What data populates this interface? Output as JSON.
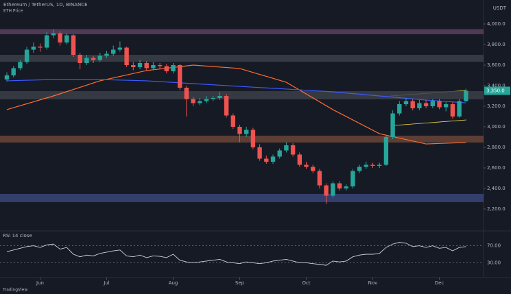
{
  "chart_data": {
    "type": "candlestick",
    "title": "Ethereum / TetherUS, 1D, BINANCE",
    "subtitle": "ETH Price",
    "currency": "USDT",
    "footer": "TradingView",
    "ylim": [
      2000,
      4200
    ],
    "yticks": [
      {
        "value": 2200,
        "label": "2,200.0"
      },
      {
        "value": 2400,
        "label": "2,400.0"
      },
      {
        "value": 2600,
        "label": "2,600.0"
      },
      {
        "value": 2800,
        "label": "2,800.0"
      },
      {
        "value": 3000,
        "label": "3,000.0"
      },
      {
        "value": 3200,
        "label": "3,200.0"
      },
      {
        "value": 3400,
        "label": "3,400.0"
      },
      {
        "value": 3600,
        "label": "3,600.0"
      },
      {
        "value": 3800,
        "label": "3,800.0"
      },
      {
        "value": 4000,
        "label": "4,000.0"
      }
    ],
    "xticks": [
      {
        "value": 5,
        "label": "Jun"
      },
      {
        "value": 15,
        "label": "Jul"
      },
      {
        "value": 25,
        "label": "Aug"
      },
      {
        "value": 35,
        "label": "Sep"
      },
      {
        "value": 45,
        "label": "Oct"
      },
      {
        "value": 55,
        "label": "Nov"
      },
      {
        "value": 65,
        "label": "Dec"
      }
    ],
    "up_color": "#26a69a",
    "down_color": "#ef5350",
    "ohlc": [
      [
        3460,
        3530,
        3440,
        3500
      ],
      [
        3500,
        3590,
        3480,
        3570
      ],
      [
        3570,
        3650,
        3550,
        3630
      ],
      [
        3630,
        3780,
        3610,
        3750
      ],
      [
        3750,
        3820,
        3720,
        3780
      ],
      [
        3780,
        3810,
        3730,
        3770
      ],
      [
        3770,
        3920,
        3750,
        3890
      ],
      [
        3890,
        3950,
        3860,
        3910
      ],
      [
        3910,
        3930,
        3790,
        3820
      ],
      [
        3820,
        3910,
        3800,
        3890
      ],
      [
        3890,
        3900,
        3680,
        3700
      ],
      [
        3700,
        3720,
        3560,
        3620
      ],
      [
        3620,
        3700,
        3600,
        3670
      ],
      [
        3670,
        3690,
        3620,
        3650
      ],
      [
        3650,
        3720,
        3630,
        3690
      ],
      [
        3690,
        3740,
        3670,
        3710
      ],
      [
        3710,
        3790,
        3690,
        3750
      ],
      [
        3750,
        3830,
        3730,
        3770
      ],
      [
        3770,
        3780,
        3580,
        3600
      ],
      [
        3600,
        3630,
        3550,
        3580
      ],
      [
        3580,
        3650,
        3560,
        3620
      ],
      [
        3620,
        3640,
        3550,
        3570
      ],
      [
        3570,
        3630,
        3550,
        3600
      ],
      [
        3600,
        3620,
        3560,
        3590
      ],
      [
        3590,
        3610,
        3520,
        3540
      ],
      [
        3540,
        3620,
        3520,
        3600
      ],
      [
        3600,
        3610,
        3360,
        3380
      ],
      [
        3380,
        3400,
        3100,
        3270
      ],
      [
        3270,
        3290,
        3200,
        3230
      ],
      [
        3230,
        3280,
        3210,
        3250
      ],
      [
        3250,
        3300,
        3230,
        3270
      ],
      [
        3270,
        3300,
        3250,
        3280
      ],
      [
        3280,
        3340,
        3260,
        3300
      ],
      [
        3300,
        3320,
        3090,
        3110
      ],
      [
        3110,
        3130,
        2980,
        3000
      ],
      [
        3000,
        3020,
        2850,
        2930
      ],
      [
        2930,
        3000,
        2900,
        2970
      ],
      [
        2970,
        2990,
        2780,
        2800
      ],
      [
        2800,
        2830,
        2670,
        2690
      ],
      [
        2690,
        2720,
        2640,
        2660
      ],
      [
        2660,
        2730,
        2640,
        2710
      ],
      [
        2710,
        2790,
        2690,
        2770
      ],
      [
        2770,
        2850,
        2750,
        2820
      ],
      [
        2820,
        2840,
        2710,
        2730
      ],
      [
        2730,
        2750,
        2610,
        2630
      ],
      [
        2630,
        2660,
        2590,
        2610
      ],
      [
        2610,
        2630,
        2550,
        2570
      ],
      [
        2570,
        2590,
        2400,
        2430
      ],
      [
        2430,
        2450,
        2250,
        2330
      ],
      [
        2330,
        2470,
        2310,
        2450
      ],
      [
        2450,
        2470,
        2380,
        2400
      ],
      [
        2400,
        2440,
        2380,
        2420
      ],
      [
        2420,
        2590,
        2400,
        2570
      ],
      [
        2570,
        2630,
        2550,
        2610
      ],
      [
        2610,
        2660,
        2590,
        2630
      ],
      [
        2630,
        2650,
        2600,
        2620
      ],
      [
        2620,
        2650,
        2600,
        2630
      ],
      [
        2630,
        2920,
        2620,
        2900
      ],
      [
        2900,
        3160,
        2880,
        3130
      ],
      [
        3130,
        3250,
        3110,
        3220
      ],
      [
        3220,
        3280,
        3200,
        3250
      ],
      [
        3250,
        3270,
        3160,
        3180
      ],
      [
        3180,
        3260,
        3160,
        3230
      ],
      [
        3230,
        3260,
        3180,
        3200
      ],
      [
        3200,
        3270,
        3180,
        3250
      ],
      [
        3250,
        3270,
        3170,
        3190
      ],
      [
        3190,
        3240,
        3150,
        3220
      ],
      [
        3220,
        3240,
        3080,
        3100
      ],
      [
        3100,
        3270,
        3090,
        3250
      ],
      [
        3250,
        3370,
        3240,
        3350
      ]
    ],
    "last_label": "3,350.0",
    "zones": [
      {
        "from": 3900,
        "to": 3950,
        "color": "#5a3f5e"
      },
      {
        "from": 3633,
        "to": 3700,
        "color": "#3b4148"
      },
      {
        "from": 3267,
        "to": 3347,
        "color": "#3b4148"
      },
      {
        "from": 2847,
        "to": 2913,
        "color": "#6b4438"
      },
      {
        "from": 2267,
        "to": 2347,
        "color": "#39457a"
      }
    ],
    "lines": [
      {
        "color": "#ff6d2e",
        "x": [
          0,
          7,
          14,
          21,
          28,
          35,
          42,
          49,
          56,
          63,
          69
        ],
        "values": [
          3167,
          3300,
          3447,
          3547,
          3600,
          3567,
          3433,
          3167,
          2933,
          2833,
          2847
        ]
      },
      {
        "color": "#3d5afe",
        "x": [
          0,
          7,
          14,
          21,
          28,
          35,
          42,
          49,
          56,
          63,
          69
        ],
        "values": [
          3447,
          3460,
          3460,
          3447,
          3420,
          3393,
          3367,
          3340,
          3300,
          3260,
          3233
        ]
      }
    ],
    "rsi": {
      "label": "RSI 14 close",
      "color": "#d1d4dc",
      "ylim": [
        0,
        100
      ],
      "yticks": [
        {
          "value": 70,
          "label": "70.00"
        },
        {
          "value": 30,
          "label": "30.00"
        }
      ],
      "values": [
        56,
        60,
        64,
        68,
        70,
        66,
        72,
        74,
        62,
        66,
        50,
        44,
        48,
        46,
        52,
        55,
        58,
        60,
        46,
        44,
        48,
        42,
        46,
        45,
        42,
        50,
        36,
        32,
        30,
        32,
        34,
        36,
        38,
        32,
        30,
        28,
        32,
        30,
        28,
        30,
        34,
        36,
        38,
        34,
        30,
        30,
        28,
        26,
        24,
        34,
        32,
        34,
        44,
        48,
        50,
        50,
        52,
        66,
        74,
        78,
        76,
        68,
        70,
        66,
        70,
        64,
        66,
        58,
        66,
        68
      ]
    }
  }
}
